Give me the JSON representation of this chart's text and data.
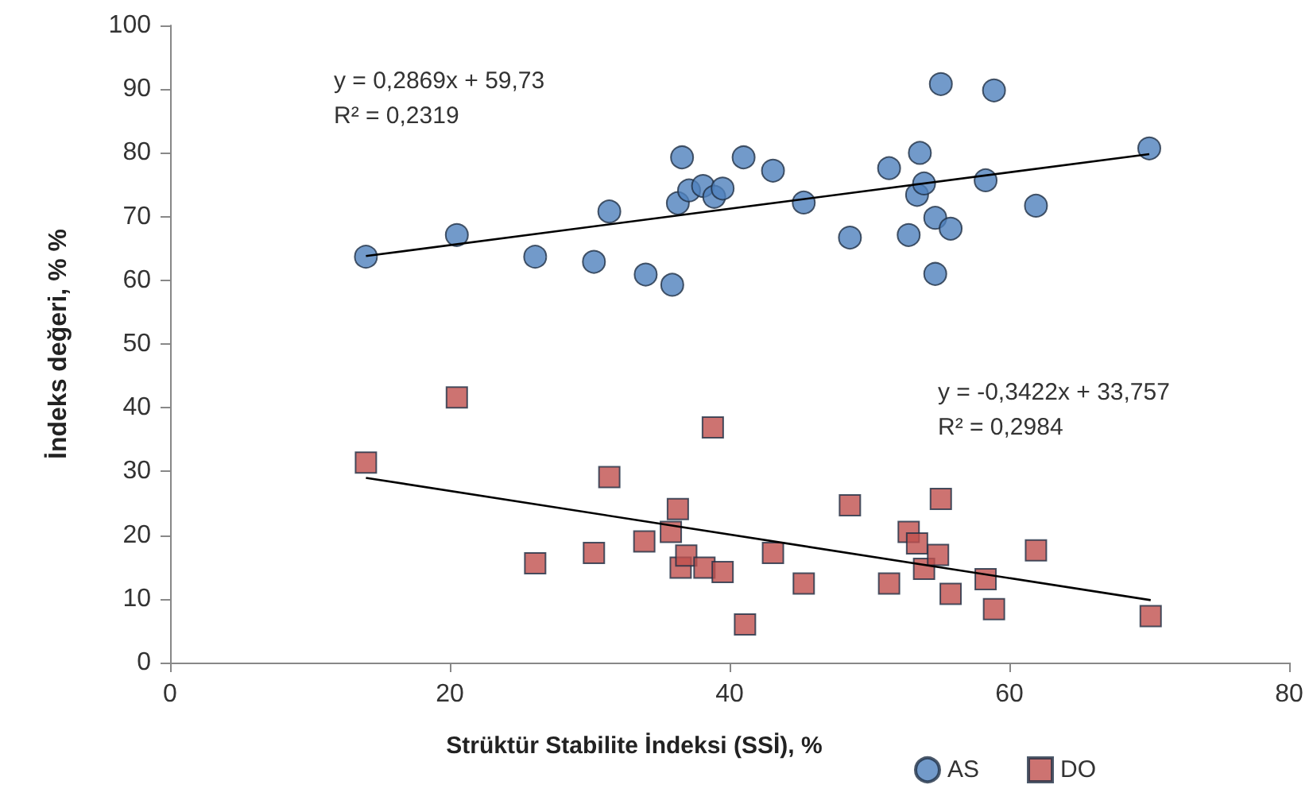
{
  "chart_data": {
    "type": "scatter",
    "xlabel": "Strüktür Stabilite İndeksi (SSİ), %",
    "ylabel": "İndeks değeri, % %",
    "xlim": [
      0,
      80
    ],
    "xticks": [
      0,
      20,
      40,
      60,
      80
    ],
    "ylim": [
      0,
      100
    ],
    "yticks": [
      0,
      10,
      20,
      30,
      40,
      50,
      60,
      70,
      80,
      90,
      100
    ],
    "grid": false,
    "legend": "bottom right",
    "annotations": [
      "y = 0,2869x + 59,73\nR² = 0,2319",
      "y = -0,3422x + 33,757\nR² = 0,2984"
    ],
    "series": [
      {
        "name": "AS",
        "color": "#4f81bd",
        "marker": "circle",
        "x": [
          14.0,
          20.5,
          26.1,
          30.3,
          31.4,
          34.0,
          35.9,
          36.3,
          36.6,
          37.1,
          38.1,
          38.9,
          39.5,
          41.0,
          43.1,
          45.3,
          48.6,
          51.4,
          52.8,
          53.4,
          53.6,
          53.9,
          54.7,
          54.7,
          55.1,
          55.8,
          58.3,
          58.9,
          61.9,
          70.0
        ],
        "values": [
          63.7,
          67.1,
          63.7,
          62.9,
          70.8,
          60.9,
          59.3,
          72.1,
          79.3,
          74.1,
          74.8,
          73.1,
          74.4,
          79.3,
          77.2,
          72.2,
          66.7,
          77.6,
          67.1,
          73.4,
          80.0,
          75.2,
          69.8,
          61.0,
          90.8,
          68.1,
          75.7,
          89.8,
          71.7,
          80.7
        ]
      },
      {
        "name": "DO",
        "color": "#c0504d",
        "marker": "square",
        "x": [
          14.0,
          20.5,
          26.1,
          30.3,
          31.4,
          33.9,
          35.8,
          36.3,
          36.5,
          36.9,
          38.2,
          38.8,
          39.5,
          41.1,
          43.1,
          45.3,
          48.6,
          51.4,
          52.8,
          53.4,
          53.9,
          54.9,
          55.1,
          55.8,
          58.3,
          58.9,
          61.9,
          70.1
        ],
        "values": [
          31.4,
          41.6,
          15.6,
          17.2,
          29.1,
          19.0,
          20.5,
          24.1,
          14.9,
          16.8,
          14.9,
          36.9,
          14.2,
          6.0,
          17.2,
          12.4,
          24.7,
          12.4,
          20.5,
          18.7,
          14.7,
          16.9,
          25.7,
          10.8,
          13.1,
          8.4,
          17.6,
          7.3
        ]
      },
      {
        "type": "line",
        "color": "#000000",
        "marker": "none",
        "x": [
          14.0,
          70.0
        ],
        "values": [
          63.8,
          79.8
        ]
      },
      {
        "type": "line",
        "color": "#000000",
        "marker": "none",
        "x": [
          14.0,
          70.1
        ],
        "values": [
          29.0,
          9.8
        ]
      }
    ]
  }
}
